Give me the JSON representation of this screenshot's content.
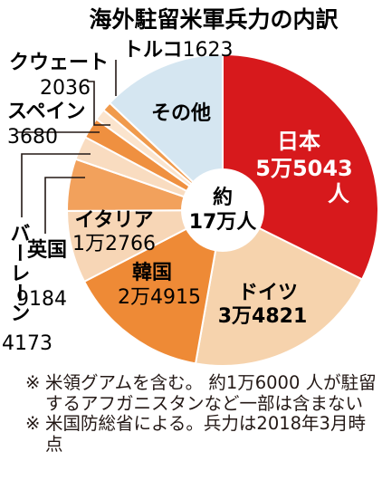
{
  "chart_data": {
    "type": "pie",
    "title": "海外駐留米軍兵力の内訳",
    "center_label": [
      "約",
      "17万人"
    ],
    "slices": [
      {
        "name": "日本",
        "value_text": "5万5043人",
        "value": 55043,
        "color": "#d7191c"
      },
      {
        "name": "ドイツ",
        "value_text": "3万4821",
        "value": 34821,
        "color": "#f6d3ad"
      },
      {
        "name": "韓国",
        "value_text": "2万4915",
        "value": 24915,
        "color": "#ee8a36"
      },
      {
        "name": "イタリア",
        "value_text": "1万2766",
        "value": 12766,
        "color": "#f7d6b6"
      },
      {
        "name": "英国",
        "value_text": "9184",
        "value": 9184,
        "color": "#f2a15c"
      },
      {
        "name": "バーレーン",
        "value_text": "4173",
        "value": 4173,
        "color": "#f9dcc0"
      },
      {
        "name": "スペイン",
        "value_text": "3680",
        "value": 3680,
        "color": "#ef9040"
      },
      {
        "name": "クウェート",
        "value_text": "2036",
        "value": 2036,
        "color": "#fbe4cd"
      },
      {
        "name": "トルコ",
        "value_text": "1623",
        "value": 1623,
        "color": "#f09a4c"
      },
      {
        "name": "その他",
        "value_text": "",
        "value": 22000,
        "color": "#d5e6f1"
      }
    ]
  },
  "notes": [
    {
      "mark": "※",
      "text": "米領グアムを含む。 約1万6000 人が駐留するアフガニスタンなど一部は含まない"
    },
    {
      "mark": "※",
      "text": "米国防総省による。兵力は2018年3月時点"
    }
  ]
}
